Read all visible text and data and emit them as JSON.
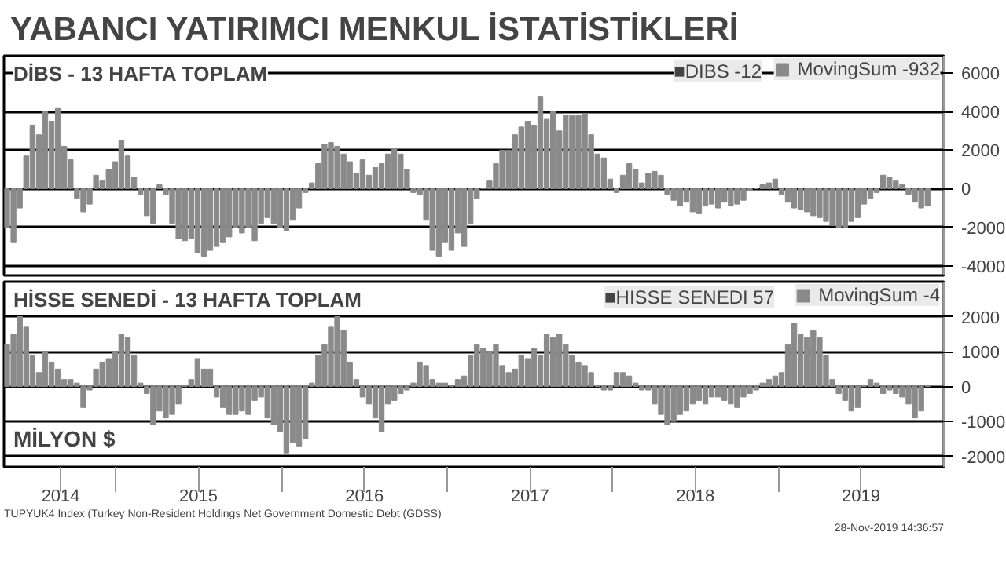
{
  "chart_data": [
    {
      "type": "bar",
      "title": "YABANCI YATIRIMCI MENKUL İSTATİSTİKLERİ",
      "subtitle": "DİBS - 13 HAFTA TOPLAM",
      "annotations": [
        "■DIBS -12"
      ],
      "x": [
        "2014-05-06",
        "2014-05-20",
        "2014-06-03",
        "2014-06-17",
        "2014-07-01",
        "2014-07-15",
        "2014-07-29",
        "2014-08-12",
        "2014-08-26",
        "2014-09-09",
        "2014-09-23",
        "2014-10-07",
        "2014-10-21",
        "2014-11-04",
        "2014-11-18",
        "2014-12-02",
        "2014-12-16",
        "2014-12-30",
        "2015-01-13",
        "2015-01-27",
        "2015-02-10",
        "2015-02-24",
        "2015-03-10",
        "2015-03-24",
        "2015-04-07",
        "2015-04-21",
        "2015-05-05",
        "2015-05-19",
        "2015-06-02",
        "2015-06-16",
        "2015-06-30",
        "2015-07-14",
        "2015-07-28",
        "2015-08-11",
        "2015-08-25",
        "2015-09-08",
        "2015-09-22",
        "2015-10-06",
        "2015-10-20",
        "2015-11-03",
        "2015-11-17",
        "2015-12-01",
        "2015-12-15",
        "2015-12-29",
        "2016-01-12",
        "2016-01-26",
        "2016-02-09",
        "2016-02-23",
        "2016-03-08",
        "2016-03-22",
        "2016-04-05",
        "2016-04-19",
        "2016-05-03",
        "2016-05-17",
        "2016-05-31",
        "2016-06-14",
        "2016-06-28",
        "2016-07-12",
        "2016-07-26",
        "2016-08-09",
        "2016-08-23",
        "2016-09-06",
        "2016-09-20",
        "2016-10-04",
        "2016-10-18",
        "2016-11-01",
        "2016-11-15",
        "2016-11-29",
        "2016-12-13",
        "2016-12-27",
        "2017-01-10",
        "2017-01-24",
        "2017-02-07",
        "2017-02-21",
        "2017-03-07",
        "2017-03-21",
        "2017-04-04",
        "2017-04-18",
        "2017-05-02",
        "2017-05-16",
        "2017-05-30",
        "2017-06-13",
        "2017-06-27",
        "2017-07-11",
        "2017-07-25",
        "2017-08-08",
        "2017-08-22",
        "2017-09-05",
        "2017-09-19",
        "2017-10-03",
        "2017-10-17",
        "2017-10-31",
        "2017-11-14",
        "2017-11-28",
        "2017-12-12",
        "2017-12-26",
        "2018-01-09",
        "2018-01-23",
        "2018-02-06",
        "2018-02-20",
        "2018-03-06",
        "2018-03-20",
        "2018-04-03",
        "2018-04-17",
        "2018-05-01",
        "2018-05-15",
        "2018-05-29",
        "2018-06-12",
        "2018-06-26",
        "2018-07-10",
        "2018-07-24",
        "2018-08-07",
        "2018-08-21",
        "2018-09-04",
        "2018-09-18",
        "2018-10-02",
        "2018-10-16",
        "2018-10-30",
        "2018-11-13",
        "2018-11-27",
        "2018-12-11",
        "2018-12-25",
        "2019-01-08",
        "2019-01-22",
        "2019-02-05",
        "2019-02-19",
        "2019-03-05",
        "2019-03-19",
        "2019-04-02",
        "2019-04-16",
        "2019-04-30",
        "2019-05-14",
        "2019-05-28",
        "2019-06-11",
        "2019-06-25",
        "2019-07-09",
        "2019-07-23",
        "2019-08-06",
        "2019-08-20",
        "2019-09-03",
        "2019-09-17",
        "2019-10-01",
        "2019-10-15",
        "2019-10-29",
        "2019-11-12",
        "2019-11-26"
      ],
      "series": [
        {
          "name": "MovingSum -932",
          "color": "#8a8a8a",
          "values": [
            -2000,
            -2800,
            -1000,
            1700,
            3300,
            2800,
            4000,
            3500,
            4200,
            2200,
            1500,
            -500,
            -1200,
            -800,
            700,
            400,
            1000,
            1400,
            2500,
            1700,
            600,
            -300,
            -1400,
            -1800,
            200,
            -300,
            -1800,
            -2600,
            -2700,
            -2600,
            -3300,
            -3500,
            -3200,
            -3000,
            -2800,
            -2500,
            -2000,
            -2300,
            -2000,
            -2700,
            -1800,
            -1500,
            -1800,
            -2000,
            -2200,
            -1600,
            -1000,
            -200,
            300,
            1300,
            2300,
            2400,
            2200,
            1800,
            1400,
            800,
            1500,
            700,
            1100,
            1300,
            1800,
            2100,
            1800,
            1000,
            -200,
            -300,
            -1600,
            -3200,
            -3500,
            -2800,
            -3200,
            -2300,
            -3000,
            -1800,
            -500,
            0,
            400,
            1300,
            2000,
            2000,
            2800,
            3200,
            3500,
            3300,
            4800,
            3600,
            4000,
            3000,
            3800,
            3800,
            3800,
            3900,
            2800,
            1800,
            1600,
            500,
            -200,
            700,
            1300,
            1000,
            300,
            800,
            900,
            700,
            -300,
            -600,
            -900,
            -700,
            -1200,
            -1300,
            -900,
            -800,
            -1000,
            -700,
            -900,
            -800,
            -600,
            -100,
            0,
            200,
            300,
            500,
            -300,
            -700,
            -1000,
            -1100,
            -1200,
            -1400,
            -1500,
            -1700,
            -1900,
            -2000,
            -2000,
            -1700,
            -1500,
            -800,
            -500,
            -200,
            700,
            600,
            400,
            200,
            -300,
            -700,
            -1000,
            -900
          ]
        }
      ],
      "xlim": [
        "2014-04-29",
        "2020-01-01"
      ],
      "ylim": [
        -4500,
        6900
      ],
      "yticks": [
        -4000,
        -2000,
        0,
        2000,
        4000,
        6000
      ],
      "grid": "y",
      "legend": "top right",
      "tick_labels": "y"
    },
    {
      "type": "bar",
      "title": "HİSSE SENEDİ - 13 HAFTA TOPLAM",
      "annotations": [
        "■HISSE SENEDI 57",
        "MİLYON $",
        "TUPYUK4 Index (Turkey Non-Resident Holdings Net Government Domestic Debt (GDSS)",
        "28-Nov-2019 14:36:57"
      ],
      "x": [
        "2014-05-06",
        "2014-05-20",
        "2014-06-03",
        "2014-06-17",
        "2014-07-01",
        "2014-07-15",
        "2014-07-29",
        "2014-08-12",
        "2014-08-26",
        "2014-09-09",
        "2014-09-23",
        "2014-10-07",
        "2014-10-21",
        "2014-11-04",
        "2014-11-18",
        "2014-12-02",
        "2014-12-16",
        "2014-12-30",
        "2015-01-13",
        "2015-01-27",
        "2015-02-10",
        "2015-02-24",
        "2015-03-10",
        "2015-03-24",
        "2015-04-07",
        "2015-04-21",
        "2015-05-05",
        "2015-05-19",
        "2015-06-02",
        "2015-06-16",
        "2015-06-30",
        "2015-07-14",
        "2015-07-28",
        "2015-08-11",
        "2015-08-25",
        "2015-09-08",
        "2015-09-22",
        "2015-10-06",
        "2015-10-20",
        "2015-11-03",
        "2015-11-17",
        "2015-12-01",
        "2015-12-15",
        "2015-12-29",
        "2016-01-12",
        "2016-01-26",
        "2016-02-09",
        "2016-02-23",
        "2016-03-08",
        "2016-03-22",
        "2016-04-05",
        "2016-04-19",
        "2016-05-03",
        "2016-05-17",
        "2016-05-31",
        "2016-06-14",
        "2016-06-28",
        "2016-07-12",
        "2016-07-26",
        "2016-08-09",
        "2016-08-23",
        "2016-09-06",
        "2016-09-20",
        "2016-10-04",
        "2016-10-18",
        "2016-11-01",
        "2016-11-15",
        "2016-11-29",
        "2016-12-13",
        "2016-12-27",
        "2017-01-10",
        "2017-01-24",
        "2017-02-07",
        "2017-02-21",
        "2017-03-07",
        "2017-03-21",
        "2017-04-04",
        "2017-04-18",
        "2017-05-02",
        "2017-05-16",
        "2017-05-30",
        "2017-06-13",
        "2017-06-27",
        "2017-07-11",
        "2017-07-25",
        "2017-08-08",
        "2017-08-22",
        "2017-09-05",
        "2017-09-19",
        "2017-10-03",
        "2017-10-17",
        "2017-10-31",
        "2017-11-14",
        "2017-11-28",
        "2017-12-12",
        "2017-12-26",
        "2018-01-09",
        "2018-01-23",
        "2018-02-06",
        "2018-02-20",
        "2018-03-06",
        "2018-03-20",
        "2018-04-03",
        "2018-04-17",
        "2018-05-01",
        "2018-05-15",
        "2018-05-29",
        "2018-06-12",
        "2018-06-26",
        "2018-07-10",
        "2018-07-24",
        "2018-08-07",
        "2018-08-21",
        "2018-09-04",
        "2018-09-18",
        "2018-10-02",
        "2018-10-16",
        "2018-10-30",
        "2018-11-13",
        "2018-11-27",
        "2018-12-11",
        "2018-12-25",
        "2019-01-08",
        "2019-01-22",
        "2019-02-05",
        "2019-02-19",
        "2019-03-05",
        "2019-03-19",
        "2019-04-02",
        "2019-04-16",
        "2019-04-30",
        "2019-05-14",
        "2019-05-28",
        "2019-06-11",
        "2019-06-25",
        "2019-07-09",
        "2019-07-23",
        "2019-08-06",
        "2019-08-20",
        "2019-09-03",
        "2019-09-17",
        "2019-10-01",
        "2019-10-15",
        "2019-10-29",
        "2019-11-12",
        "2019-11-26"
      ],
      "series": [
        {
          "name": "MovingSum -4",
          "color": "#8a8a8a",
          "values": [
            1200,
            1500,
            2000,
            1700,
            900,
            400,
            1000,
            700,
            500,
            200,
            200,
            100,
            -600,
            -100,
            500,
            700,
            800,
            1000,
            1500,
            1400,
            900,
            100,
            -200,
            -1100,
            -700,
            -900,
            -800,
            -500,
            0,
            200,
            800,
            500,
            500,
            -300,
            -600,
            -800,
            -800,
            -700,
            -800,
            -400,
            -300,
            -900,
            -1100,
            -1300,
            -1900,
            -1600,
            -1700,
            -1500,
            100,
            900,
            1200,
            1700,
            2000,
            1600,
            700,
            200,
            -300,
            -500,
            -900,
            -1300,
            -500,
            -400,
            -200,
            -100,
            100,
            700,
            600,
            200,
            100,
            100,
            0,
            200,
            300,
            900,
            1200,
            1100,
            1000,
            1200,
            600,
            400,
            500,
            900,
            800,
            1100,
            900,
            1500,
            1400,
            1500,
            1200,
            900,
            700,
            600,
            400,
            0,
            -100,
            -100,
            400,
            400,
            300,
            100,
            -100,
            -100,
            -500,
            -800,
            -1100,
            -1000,
            -800,
            -700,
            -500,
            -400,
            -500,
            -300,
            -300,
            -400,
            -500,
            -600,
            -300,
            -200,
            -100,
            100,
            200,
            300,
            400,
            1200,
            1800,
            1500,
            1400,
            1600,
            1400,
            900,
            200,
            -200,
            -400,
            -700,
            -600,
            0,
            200,
            100,
            -200,
            -100,
            -200,
            -300,
            -500,
            -900,
            -700,
            0
          ]
        }
      ],
      "xlim": [
        "2014-04-29",
        "2020-01-01"
      ],
      "xticks": [
        {
          "value": "2014-09-01",
          "label": "2014"
        },
        {
          "value": "2015-01-01",
          "label": null
        },
        {
          "value": "2015-07-02",
          "label": "2015"
        },
        {
          "value": "2016-01-01",
          "label": null
        },
        {
          "value": "2016-07-02",
          "label": "2016"
        },
        {
          "value": "2017-01-01",
          "label": null
        },
        {
          "value": "2017-07-02",
          "label": "2017"
        },
        {
          "value": "2018-01-01",
          "label": null
        },
        {
          "value": "2018-07-02",
          "label": "2018"
        },
        {
          "value": "2019-01-01",
          "label": null
        },
        {
          "value": "2019-07-02",
          "label": "2019"
        }
      ],
      "ylim": [
        -2300,
        3000
      ],
      "yticks": [
        -2000,
        -1000,
        0,
        1000,
        2000
      ],
      "grid": "y",
      "legend": "top right"
    }
  ]
}
